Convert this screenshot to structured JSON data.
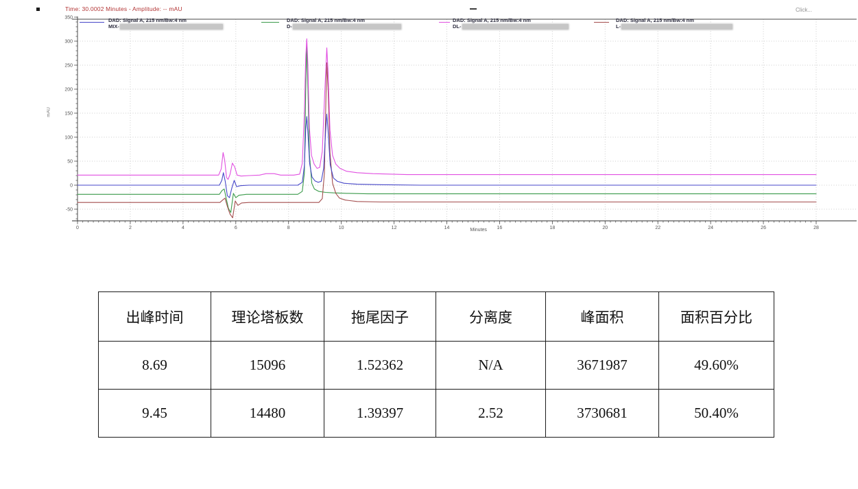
{
  "header": {
    "time_readout": "Time:  30.0002 Minutes - Amplitude:  -- mAU",
    "click_hint": "Click..."
  },
  "chart_data": {
    "type": "line",
    "title": "Time: 30.0002 Minutes - Amplitude: -- mAU",
    "xlabel": "Minutes",
    "ylabel": "mAU",
    "xlim": [
      0,
      28
    ],
    "ylim": [
      -74,
      350
    ],
    "x_ticks": [
      0,
      2,
      4,
      6,
      8,
      10,
      12,
      14,
      16,
      18,
      20,
      22,
      24,
      26,
      28
    ],
    "y_ticks": [
      350,
      300,
      250,
      200,
      150,
      100,
      50,
      0,
      -50
    ],
    "grid": true,
    "legend_position": "top",
    "peaks": [
      {
        "retention_time": 8.69,
        "apex_mAU": 305
      },
      {
        "retention_time": 9.45,
        "apex_mAU": 286
      }
    ],
    "series": [
      {
        "name": "DAD: Signal A, 215 nm/Bw:4 nm",
        "sample": "MIX-",
        "color": "#4646c8",
        "baseline_mAU": 0,
        "points": [
          [
            0,
            0
          ],
          [
            1,
            0
          ],
          [
            2,
            0
          ],
          [
            3,
            0
          ],
          [
            4,
            0
          ],
          [
            5,
            0
          ],
          [
            5.38,
            0
          ],
          [
            5.47,
            10
          ],
          [
            5.53,
            26
          ],
          [
            5.6,
            8
          ],
          [
            5.68,
            -22
          ],
          [
            5.76,
            -26
          ],
          [
            5.85,
            -6
          ],
          [
            5.94,
            10
          ],
          [
            6.03,
            -3
          ],
          [
            6.18,
            -1
          ],
          [
            6.5,
            0
          ],
          [
            7,
            0
          ],
          [
            8,
            0
          ],
          [
            8.35,
            0
          ],
          [
            8.52,
            6
          ],
          [
            8.6,
            40
          ],
          [
            8.65,
            115
          ],
          [
            8.69,
            143
          ],
          [
            8.73,
            112
          ],
          [
            8.8,
            45
          ],
          [
            8.89,
            17
          ],
          [
            9,
            9
          ],
          [
            9.12,
            6
          ],
          [
            9.24,
            8
          ],
          [
            9.33,
            35
          ],
          [
            9.41,
            115
          ],
          [
            9.45,
            148
          ],
          [
            9.5,
            112
          ],
          [
            9.58,
            42
          ],
          [
            9.7,
            15
          ],
          [
            9.85,
            8
          ],
          [
            10.1,
            4
          ],
          [
            10.6,
            2
          ],
          [
            11.5,
            1
          ],
          [
            13,
            0
          ],
          [
            16,
            0
          ],
          [
            20,
            0
          ],
          [
            24,
            0
          ],
          [
            28,
            0
          ]
        ]
      },
      {
        "name": "DAD: Signal A, 215 nm/Bw:4 nm",
        "sample": "D-",
        "color": "#3a9a4a",
        "baseline_mAU": -19,
        "points": [
          [
            0,
            -19
          ],
          [
            1,
            -19
          ],
          [
            2,
            -19
          ],
          [
            3,
            -19
          ],
          [
            4,
            -19
          ],
          [
            5,
            -19
          ],
          [
            5.38,
            -19
          ],
          [
            5.48,
            -11
          ],
          [
            5.56,
            -8
          ],
          [
            5.63,
            -26
          ],
          [
            5.72,
            -48
          ],
          [
            5.81,
            -57
          ],
          [
            5.91,
            -17
          ],
          [
            6,
            -26
          ],
          [
            6.12,
            -21
          ],
          [
            6.4,
            -19
          ],
          [
            7,
            -19
          ],
          [
            8,
            -19
          ],
          [
            8.35,
            -19
          ],
          [
            8.52,
            -13
          ],
          [
            8.6,
            25
          ],
          [
            8.65,
            195
          ],
          [
            8.69,
            289
          ],
          [
            8.73,
            215
          ],
          [
            8.79,
            65
          ],
          [
            8.88,
            4
          ],
          [
            8.98,
            -8
          ],
          [
            9.15,
            -13
          ],
          [
            9.4,
            -15
          ],
          [
            9.7,
            -16
          ],
          [
            10.2,
            -17
          ],
          [
            11,
            -18
          ],
          [
            13,
            -18
          ],
          [
            16,
            -18
          ],
          [
            20,
            -18
          ],
          [
            24,
            -18
          ],
          [
            28,
            -18
          ]
        ]
      },
      {
        "name": "DAD: Signal A, 215 nm/Bw:4 nm",
        "sample": "DL-",
        "color": "#e14fe1",
        "baseline_mAU": 21,
        "points": [
          [
            0,
            21
          ],
          [
            1,
            21
          ],
          [
            2,
            21
          ],
          [
            3,
            21
          ],
          [
            4,
            21
          ],
          [
            5,
            21
          ],
          [
            5.35,
            21
          ],
          [
            5.45,
            34
          ],
          [
            5.52,
            68
          ],
          [
            5.58,
            52
          ],
          [
            5.65,
            16
          ],
          [
            5.71,
            12
          ],
          [
            5.78,
            22
          ],
          [
            5.87,
            46
          ],
          [
            5.96,
            38
          ],
          [
            6.05,
            21
          ],
          [
            6.2,
            19
          ],
          [
            6.5,
            20
          ],
          [
            6.9,
            21
          ],
          [
            7.15,
            24
          ],
          [
            7.45,
            24
          ],
          [
            7.7,
            21
          ],
          [
            8.2,
            21
          ],
          [
            8.42,
            23
          ],
          [
            8.52,
            45
          ],
          [
            8.6,
            150
          ],
          [
            8.65,
            265
          ],
          [
            8.69,
            305
          ],
          [
            8.73,
            255
          ],
          [
            8.79,
            120
          ],
          [
            8.87,
            62
          ],
          [
            8.97,
            44
          ],
          [
            9.08,
            35
          ],
          [
            9.18,
            37
          ],
          [
            9.28,
            70
          ],
          [
            9.37,
            190
          ],
          [
            9.45,
            286
          ],
          [
            9.5,
            235
          ],
          [
            9.57,
            115
          ],
          [
            9.67,
            62
          ],
          [
            9.79,
            44
          ],
          [
            9.95,
            35
          ],
          [
            10.2,
            29
          ],
          [
            10.6,
            26
          ],
          [
            11.2,
            24
          ],
          [
            12.5,
            22
          ],
          [
            14,
            22
          ],
          [
            17,
            22
          ],
          [
            20,
            22
          ],
          [
            23,
            22
          ],
          [
            26,
            22
          ],
          [
            28,
            22
          ]
        ]
      },
      {
        "name": "DAD: Signal A, 215 nm/Bw:4 nm",
        "sample": "L-",
        "color": "#a34d4d",
        "baseline_mAU": -36,
        "points": [
          [
            0,
            -36
          ],
          [
            1,
            -36
          ],
          [
            2,
            -36
          ],
          [
            3,
            -36
          ],
          [
            4,
            -36
          ],
          [
            5,
            -36
          ],
          [
            5.4,
            -36
          ],
          [
            5.5,
            -31
          ],
          [
            5.59,
            -27
          ],
          [
            5.68,
            -44
          ],
          [
            5.78,
            -60
          ],
          [
            5.88,
            -68
          ],
          [
            5.98,
            -33
          ],
          [
            6.08,
            -42
          ],
          [
            6.22,
            -37
          ],
          [
            6.5,
            -36
          ],
          [
            7,
            -36
          ],
          [
            8,
            -36
          ],
          [
            9,
            -36
          ],
          [
            9.15,
            -36
          ],
          [
            9.28,
            -28
          ],
          [
            9.36,
            25
          ],
          [
            9.42,
            185
          ],
          [
            9.45,
            255
          ],
          [
            9.5,
            198
          ],
          [
            9.57,
            68
          ],
          [
            9.67,
            4
          ],
          [
            9.79,
            -17
          ],
          [
            9.93,
            -27
          ],
          [
            10.15,
            -31
          ],
          [
            10.6,
            -34
          ],
          [
            11.5,
            -35
          ],
          [
            13,
            -35
          ],
          [
            16,
            -35
          ],
          [
            20,
            -35
          ],
          [
            24,
            -35
          ],
          [
            28,
            -35
          ]
        ]
      }
    ]
  },
  "table": {
    "headers": [
      "出峰时间",
      "理论塔板数",
      "拖尾因子",
      "分离度",
      "峰面积",
      "面积百分比"
    ],
    "rows": [
      [
        "8.69",
        "15096",
        "1.52362",
        "N/A",
        "3671987",
        "49.60%"
      ],
      [
        "9.45",
        "14480",
        "1.39397",
        "2.52",
        "3730681",
        "50.40%"
      ]
    ]
  }
}
